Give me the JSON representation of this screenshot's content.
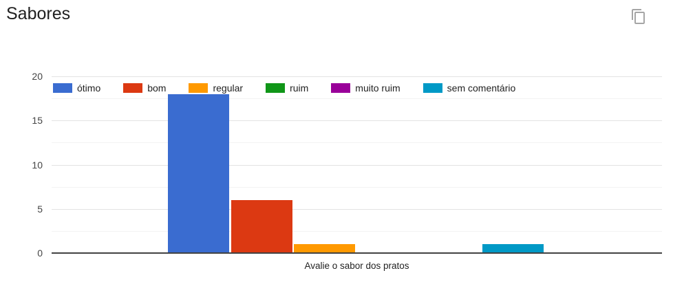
{
  "header": {
    "title": "Sabores",
    "copy_button_icon": "content-copy-icon"
  },
  "chart_data": {
    "type": "bar",
    "title": "Sabores",
    "xlabel": "Avalie o sabor dos pratos",
    "ylabel": "",
    "ylim": [
      0,
      20
    ],
    "yticks": [
      0,
      5,
      10,
      15,
      20
    ],
    "minor_yticks": [
      2.5,
      7.5,
      12.5,
      17.5
    ],
    "categories": [
      "Avalie o sabor dos pratos"
    ],
    "grid": true,
    "legend_position": "top",
    "series": [
      {
        "name": "ótimo",
        "value": 18,
        "color": "#3a6cd0"
      },
      {
        "name": "bom",
        "value": 6,
        "color": "#dc3912"
      },
      {
        "name": "regular",
        "value": 1,
        "color": "#ff9900"
      },
      {
        "name": "ruim",
        "value": 0,
        "color": "#109618"
      },
      {
        "name": "muito ruim",
        "value": 0,
        "color": "#990099"
      },
      {
        "name": "sem comentário",
        "value": 1,
        "color": "#0099c6"
      }
    ],
    "style": {
      "axis_line_color": "#424242",
      "major_grid_color": "#e3e3e3",
      "minor_grid_color": "#f3f3f3",
      "tick_label_color": "#444444",
      "text_color": "#212121"
    }
  }
}
